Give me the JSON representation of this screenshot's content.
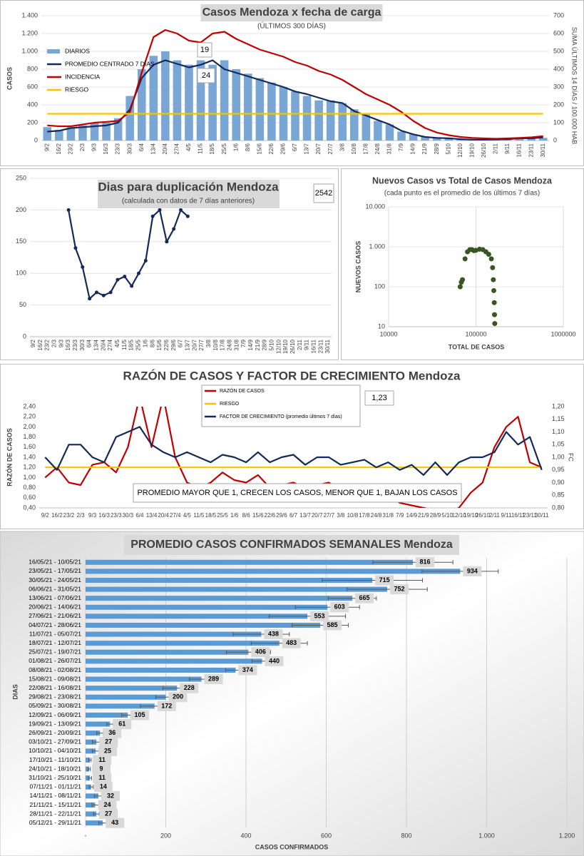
{
  "chart_data": [
    {
      "type": "bar",
      "title": "Casos Mendoza x fecha de carga",
      "subtitle": "(ÚLTIMOS 300 DÍAS)",
      "ylabel": "CASOS",
      "y2label": "SUMA ÚLTIMOS 14 DÍAS / 100.000 HAB",
      "categories": [
        "9/2",
        "16/2",
        "23/2",
        "2/3",
        "9/3",
        "16/3",
        "23/3",
        "30/3",
        "6/4",
        "13/4",
        "20/4",
        "27/4",
        "4/5",
        "11/5",
        "18/5",
        "25/5",
        "1/6",
        "8/6",
        "15/6",
        "22/6",
        "29/6",
        "6/7",
        "13/7",
        "20/7",
        "27/7",
        "3/8",
        "10/8",
        "17/8",
        "24/8",
        "31/8",
        "7/9",
        "14/9",
        "21/9",
        "28/9",
        "5/10",
        "12/10",
        "19/10",
        "26/10",
        "2/11",
        "9/11",
        "16/11",
        "23/11",
        "30/11"
      ],
      "series": [
        {
          "name": "DIARIOS",
          "type": "bar",
          "color": "#7aa6d6",
          "values": [
            150,
            120,
            150,
            170,
            200,
            200,
            250,
            500,
            800,
            950,
            1000,
            900,
            850,
            900,
            850,
            900,
            800,
            750,
            700,
            650,
            600,
            550,
            500,
            450,
            450,
            420,
            350,
            300,
            220,
            180,
            100,
            70,
            40,
            30,
            25,
            15,
            10,
            10,
            12,
            15,
            30,
            25,
            30
          ]
        },
        {
          "name": "PROMEDIO CENTRADO 7 DÍAS",
          "type": "line",
          "color": "#14285a",
          "values": [
            100,
            110,
            140,
            150,
            160,
            170,
            200,
            350,
            700,
            850,
            900,
            860,
            820,
            850,
            900,
            800,
            760,
            720,
            680,
            640,
            600,
            550,
            520,
            480,
            440,
            420,
            330,
            280,
            230,
            180,
            110,
            70,
            40,
            30,
            25,
            15,
            10,
            10,
            12,
            15,
            25,
            25,
            35
          ]
        },
        {
          "name": "INCIDENCIA",
          "type": "line",
          "axis": "y2",
          "color": "#c00000",
          "values": [
            85,
            80,
            80,
            90,
            100,
            105,
            110,
            160,
            380,
            580,
            620,
            600,
            560,
            550,
            600,
            610,
            570,
            540,
            510,
            490,
            470,
            440,
            420,
            390,
            370,
            340,
            300,
            260,
            230,
            200,
            160,
            110,
            70,
            45,
            30,
            20,
            15,
            12,
            10,
            12,
            15,
            18,
            25
          ]
        },
        {
          "name": "RIESGO",
          "type": "line",
          "axis": "y2",
          "color": "#ffc000",
          "values": [
            150,
            150,
            150,
            150,
            150,
            150,
            150,
            150,
            150,
            150,
            150,
            150,
            150,
            150,
            150,
            150,
            150,
            150,
            150,
            150,
            150,
            150,
            150,
            150,
            150,
            150,
            150,
            150,
            150,
            150,
            150,
            150,
            150,
            150,
            150,
            150,
            150,
            150,
            150,
            150,
            150,
            150,
            150
          ]
        }
      ],
      "ylim": [
        0,
        1400
      ],
      "yticks": [
        0,
        200,
        400,
        600,
        800,
        {
          "value": 1000,
          "label": "1.000"
        },
        {
          "value": 1200,
          "label": "1.200"
        },
        {
          "value": 1400,
          "label": "1.400"
        }
      ],
      "y2lim": [
        0,
        700
      ],
      "y2ticks": [
        0,
        100,
        200,
        300,
        400,
        500,
        600,
        700
      ],
      "grid": true,
      "legend": "upper left",
      "annotations": [
        "19",
        "24"
      ]
    },
    {
      "type": "line",
      "title": "Dias para duplicación Mendoza",
      "subtitle": "(calculada con datos de 7 días anteriores)",
      "categories": [
        "9/2",
        "16/2",
        "23/2",
        "2/3",
        "9/3",
        "16/3",
        "23/3",
        "30/3",
        "6/4",
        "13/4",
        "20/4",
        "27/4",
        "4/5",
        "11/5",
        "18/5",
        "25/5",
        "1/6",
        "8/6",
        "15/6",
        "22/6",
        "29/6",
        "6/7",
        "13/7",
        "20/7",
        "27/7",
        "3/8",
        "10/8",
        "17/8",
        "24/8",
        "31/8",
        "7/9",
        "14/9",
        "21/9",
        "28/9",
        "5/10",
        "12/10",
        "19/10",
        "26/10",
        "2/11",
        "9/11",
        "16/11",
        "23/11",
        "30/11"
      ],
      "series": [
        {
          "color": "#14285a",
          "values": [
            null,
            null,
            null,
            null,
            null,
            200,
            140,
            110,
            60,
            70,
            65,
            70,
            90,
            95,
            80,
            100,
            120,
            190,
            200,
            150,
            170,
            200,
            190,
            null,
            null,
            null,
            null,
            null,
            null,
            null,
            null,
            null,
            null,
            null,
            null,
            null,
            null,
            null,
            null,
            null,
            null,
            null,
            null
          ]
        }
      ],
      "ylim": [
        0,
        250
      ],
      "yticks": [
        0,
        50,
        100,
        150,
        200,
        250
      ],
      "grid": true,
      "markers": true,
      "annotations": [
        "2542"
      ]
    },
    {
      "type": "scatter",
      "title": "Nuevos Casos vs Total de Casos Mendoza",
      "subtitle": "(cada punto es el promedio de los últimos 7 días)",
      "xlabel": "TOTAL DE CASOS",
      "ylabel": "NUEVOS CASOS",
      "x": [
        66000,
        68000,
        70000,
        75000,
        80000,
        85000,
        90000,
        95000,
        100000,
        110000,
        120000,
        130000,
        140000,
        150000,
        155000,
        158000,
        160000,
        162000,
        163000,
        164000
      ],
      "values": [
        100,
        130,
        150,
        500,
        750,
        850,
        850,
        800,
        820,
        870,
        850,
        750,
        650,
        500,
        300,
        150,
        80,
        40,
        20,
        12
      ],
      "color": "#375623",
      "xscale": "log",
      "yscale": "log",
      "xlim": [
        10000,
        1000000
      ],
      "xticks": [
        10000,
        100000,
        1000000
      ],
      "ylim": [
        10,
        10000
      ],
      "yticks": [
        10,
        100,
        {
          "value": 1000,
          "label": "1.000"
        },
        {
          "value": 10000,
          "label": "10.000"
        }
      ],
      "grid": true
    },
    {
      "type": "line",
      "title": "RAZÓN DE CASOS Y FACTOR DE CRECIMIENTO Mendoza",
      "ylabel": "RAZÓN DE CASOS",
      "y2label": "FC",
      "categories": [
        "9/2",
        "16/2",
        "23/2",
        "2/3",
        "9/3",
        "16/3",
        "23/3",
        "30/3",
        "6/4",
        "13/4",
        "20/4",
        "27/4",
        "4/5",
        "11/5",
        "18/5",
        "25/5",
        "1/6",
        "8/6",
        "15/6",
        "22/6",
        "29/6",
        "6/7",
        "13/7",
        "20/7",
        "27/7",
        "3/8",
        "10/8",
        "17/8",
        "24/8",
        "31/8",
        "7/9",
        "14/9",
        "21/9",
        "28/9",
        "5/10",
        "12/10",
        "19/10",
        "26/10",
        "2/11",
        "9/11",
        "16/11",
        "23/11",
        "30/11"
      ],
      "series": [
        {
          "name": "RAZÓN DE CASOS",
          "color": "#c00000",
          "values": [
            1.0,
            1.2,
            0.9,
            0.85,
            1.25,
            1.3,
            1.1,
            1.6,
            2.6,
            1.6,
            2.6,
            1.4,
            0.9,
            0.8,
            0.9,
            1.1,
            0.95,
            0.9,
            1.05,
            0.8,
            0.85,
            0.9,
            0.8,
            0.85,
            0.9,
            0.75,
            0.7,
            0.8,
            0.6,
            0.65,
            0.5,
            0.45,
            0.4,
            0.35,
            0.3,
            0.4,
            0.7,
            0.9,
            1.6,
            2.0,
            2.2,
            1.3,
            1.2
          ]
        },
        {
          "name": "RIESGO",
          "color": "#ffc000",
          "values": [
            1.2,
            1.2,
            1.2,
            1.2,
            1.2,
            1.2,
            1.2,
            1.2,
            1.2,
            1.2,
            1.2,
            1.2,
            1.2,
            1.2,
            1.2,
            1.2,
            1.2,
            1.2,
            1.2,
            1.2,
            1.2,
            1.2,
            1.2,
            1.2,
            1.2,
            1.2,
            1.2,
            1.2,
            1.2,
            1.2,
            1.2,
            1.2,
            1.2,
            1.2,
            1.2,
            1.2,
            1.2,
            1.2,
            1.2,
            1.2,
            1.2,
            1.2,
            1.2
          ]
        },
        {
          "name": "FACTOR DE CRECIMIENTO (promedio últimos 7 días)",
          "axis": "y2",
          "color": "#14285a",
          "values": [
            1.0,
            0.95,
            1.05,
            1.05,
            1.0,
            0.98,
            1.08,
            1.1,
            1.12,
            1.05,
            1.02,
            1.0,
            1.02,
            1.0,
            0.98,
            1.01,
            1.0,
            0.98,
            1.02,
            0.98,
            1.0,
            1.01,
            0.97,
            1.0,
            1.0,
            0.97,
            0.98,
            0.99,
            0.96,
            0.98,
            0.95,
            0.97,
            0.93,
            0.98,
            0.93,
            0.98,
            1.0,
            1.0,
            1.02,
            1.1,
            1.05,
            1.08,
            0.95
          ]
        }
      ],
      "ylim": [
        0.4,
        2.4
      ],
      "yticks": [
        {
          "value": 0.4,
          "label": "0,40"
        },
        {
          "value": 0.6,
          "label": "0,60"
        },
        {
          "value": 0.8,
          "label": "0,80"
        },
        {
          "value": 1.0,
          "label": "1,00"
        },
        {
          "value": 1.2,
          "label": "1,20"
        },
        {
          "value": 1.4,
          "label": "1,40"
        },
        {
          "value": 1.6,
          "label": "1,60"
        },
        {
          "value": 1.8,
          "label": "1,80"
        },
        {
          "value": 2.0,
          "label": "2,00"
        },
        {
          "value": 2.2,
          "label": "2,20"
        },
        {
          "value": 2.4,
          "label": "2,40"
        }
      ],
      "y2lim": [
        0.8,
        1.2
      ],
      "y2ticks": [
        {
          "value": 0.8,
          "label": "0,80"
        },
        {
          "value": 0.85,
          "label": "0,85"
        },
        {
          "value": 0.9,
          "label": "0,90"
        },
        {
          "value": 0.95,
          "label": "0,95"
        },
        {
          "value": 1.0,
          "label": "1,00"
        },
        {
          "value": 1.05,
          "label": "1,05"
        },
        {
          "value": 1.1,
          "label": "1,10"
        },
        {
          "value": 1.15,
          "label": "1,15"
        },
        {
          "value": 1.2,
          "label": "1,20"
        }
      ],
      "grid": false,
      "legend": "upper center",
      "annotations": [
        "1,23",
        "PROMEDIO MAYOR QUE 1, CRECEN LOS CASOS, MENOR QUE 1, BAJAN LOS CASOS"
      ]
    },
    {
      "type": "hbar",
      "title": "PROMEDIO CASOS CONFIRMADOS SEMANALES Mendoza",
      "xlabel": "CASOS CONFIRMADOS",
      "ylabel": "DIAS",
      "categories": [
        "16/05/21 - 10/05/21",
        "23/05/21 - 17/05/21",
        "30/05/21 - 24/05/21",
        "06/06/21 - 31/05/21",
        "13/06/21 - 07/06/21",
        "20/06/21 - 14/06/21",
        "27/06/21 - 21/06/21",
        "04/07/21 - 28/06/21",
        "11/07/21 - 05/07/21",
        "18/07/21 - 12/07/21",
        "25/07/21 - 19/07/21",
        "01/08/21 - 26/07/21",
        "08/08/21 - 02/08/21",
        "15/08/21 - 09/08/21",
        "22/08/21 - 16/08/21",
        "29/08/21 - 23/08/21",
        "05/09/21 - 30/08/21",
        "12/09/21 - 06/09/21",
        "19/09/21 - 13/09/21",
        "26/09/21 - 20/09/21",
        "03/10/21 - 27/09/21",
        "10/10/21 - 04/10/21",
        "17/10/21 - 11/10/21",
        "24/10/21 - 18/10/21",
        "31/10/21 - 25/10/21",
        "07/11/21 - 01/11/21",
        "14/11/21 - 08/11/21",
        "21/11/21 - 15/11/21",
        "28/11/21 - 22/11/21",
        "05/12/21 - 29/11/21"
      ],
      "values": [
        816,
        934,
        715,
        752,
        665,
        603,
        553,
        585,
        438,
        483,
        406,
        440,
        374,
        289,
        228,
        200,
        172,
        105,
        61,
        36,
        27,
        25,
        11,
        9,
        11,
        14,
        32,
        24,
        27,
        43
      ],
      "errors": [
        100,
        95,
        125,
        100,
        60,
        80,
        95,
        70,
        70,
        70,
        55,
        25,
        25,
        30,
        35,
        25,
        35,
        15,
        8,
        8,
        10,
        8,
        3,
        3,
        4,
        5,
        10,
        8,
        7,
        10
      ],
      "color": "#5b9bd5",
      "xlim": [
        0,
        1200
      ],
      "xticks": [
        {
          "value": 0,
          "label": "-"
        },
        200,
        400,
        600,
        800,
        {
          "value": 1000,
          "label": "1.000"
        },
        {
          "value": 1200,
          "label": "1.200"
        }
      ],
      "grid": true
    }
  ]
}
